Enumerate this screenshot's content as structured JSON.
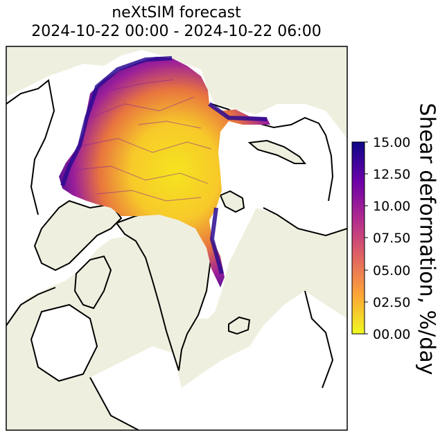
{
  "title": {
    "line1": "neXtSIM forecast",
    "line2": "2024-10-22 00:00 - 2024-10-22 06:00"
  },
  "colorbar": {
    "label": "Shear deformation, %/day",
    "min": 0,
    "max": 15,
    "ticks": [
      "00.00",
      "02.50",
      "05.00",
      "07.50",
      "10.00",
      "12.50",
      "15.00"
    ],
    "colormap": "plasma (reversed)",
    "colors": [
      "#f0f921",
      "#fca636",
      "#e16462",
      "#b12a90",
      "#6a00a8",
      "#0d0887"
    ]
  },
  "map": {
    "land_color": "#efefdf",
    "ocean_color": "#ffffff",
    "coastline_color": "#000000"
  }
}
